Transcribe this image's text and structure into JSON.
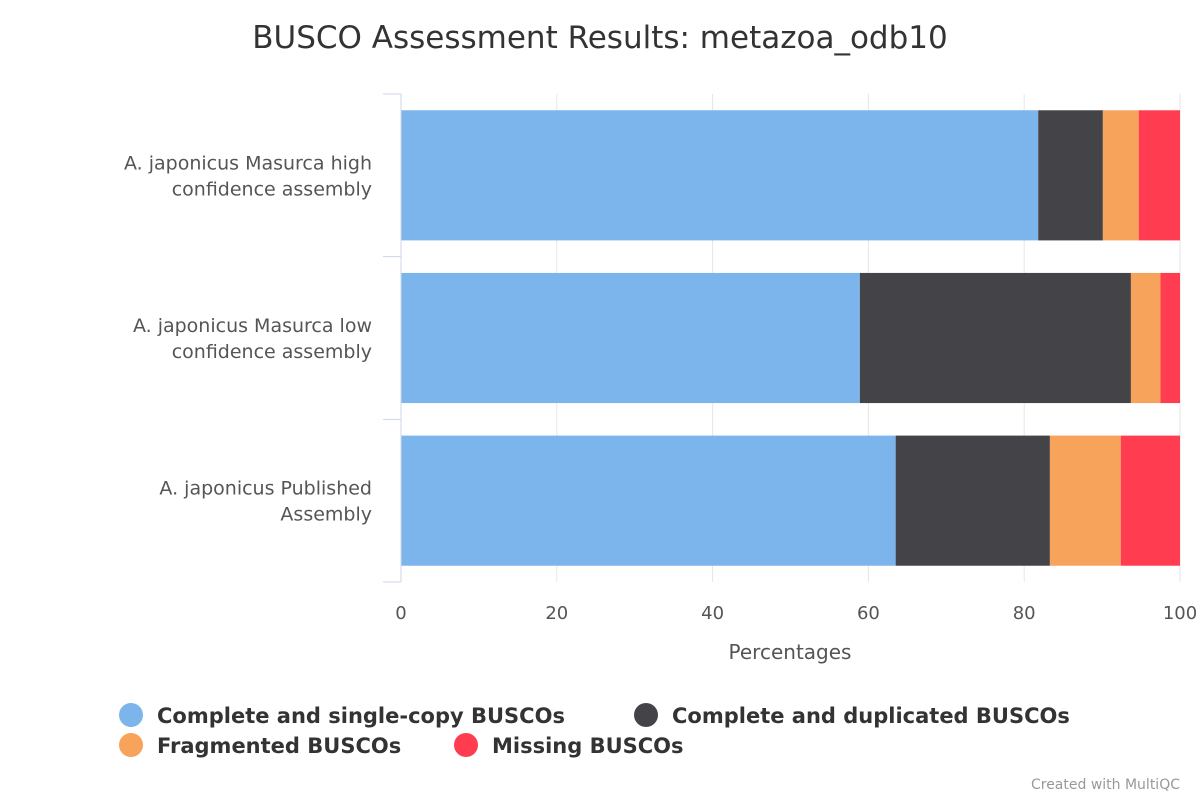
{
  "credit": "Created with MultiQC",
  "chart_data": {
    "type": "bar",
    "orientation": "horizontal",
    "stacked": true,
    "title": "BUSCO Assessment Results: metazoa_odb10",
    "xlabel": "Percentages",
    "ylabel": "",
    "xlim": [
      0,
      100
    ],
    "xticks": [
      0,
      20,
      40,
      60,
      80,
      100
    ],
    "grid": true,
    "legend_position": "bottom",
    "categories": [
      "A. japonicus Masurca high confidence assembly",
      "A. japonicus Masurca low confidence assembly",
      "A. japonicus Published Assembly"
    ],
    "series": [
      {
        "name": "Complete and single-copy BUSCOs",
        "color": "#7cb5ec",
        "values": [
          81.8,
          58.9,
          63.5
        ]
      },
      {
        "name": "Complete and duplicated BUSCOs",
        "color": "#434348",
        "values": [
          8.3,
          34.8,
          19.8
        ]
      },
      {
        "name": "Fragmented BUSCOs",
        "color": "#f7a35c",
        "values": [
          4.6,
          3.8,
          9.1
        ]
      },
      {
        "name": "Missing BUSCOs",
        "color": "#ff3c50",
        "values": [
          5.3,
          2.5,
          7.6
        ]
      }
    ]
  }
}
